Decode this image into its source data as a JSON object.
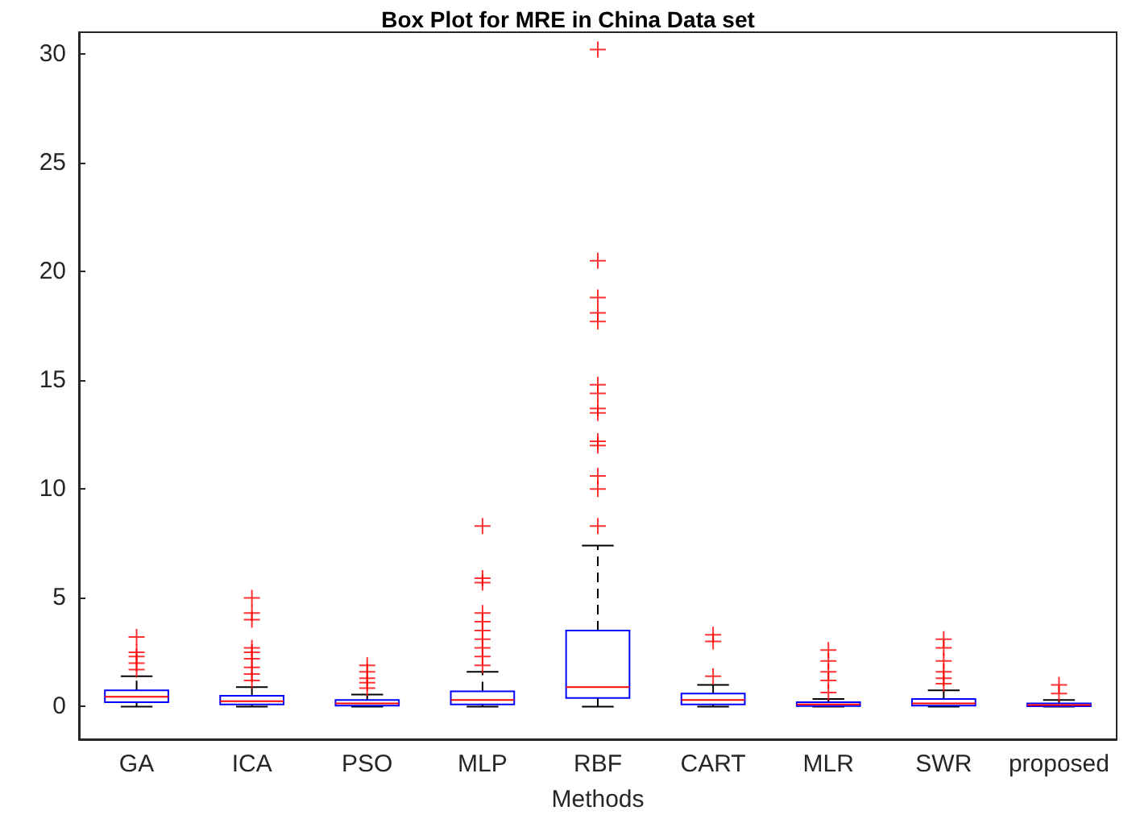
{
  "chart_data": {
    "type": "box",
    "title": "Box Plot for MRE in China Data set",
    "xlabel": "Methods",
    "categories": [
      "GA",
      "ICA",
      "PSO",
      "MLP",
      "RBF",
      "CART",
      "MLR",
      "SWR",
      "proposed"
    ],
    "ylim": [
      -1.5,
      31
    ],
    "yticks": [
      0,
      5,
      10,
      15,
      20,
      25,
      30
    ],
    "grid": false,
    "series": [
      {
        "color": "#0000ff",
        "boxes": [
          {
            "low": 0,
            "q1": 0.2,
            "median": 0.45,
            "q3": 0.75,
            "high": 1.4,
            "outliers": [
              1.7,
              2.0,
              2.3,
              2.5,
              3.2
            ]
          },
          {
            "low": 0,
            "q1": 0.1,
            "median": 0.25,
            "q3": 0.5,
            "high": 0.9,
            "outliers": [
              1.2,
              1.5,
              1.8,
              2.2,
              2.5,
              2.7,
              4.0,
              4.3,
              5.0
            ]
          },
          {
            "low": 0,
            "q1": 0.05,
            "median": 0.15,
            "q3": 0.3,
            "high": 0.55,
            "outliers": [
              0.85,
              1.1,
              1.3,
              1.6,
              1.9
            ]
          },
          {
            "low": 0,
            "q1": 0.1,
            "median": 0.3,
            "q3": 0.7,
            "high": 1.6,
            "outliers": [
              1.9,
              2.3,
              2.7,
              3.1,
              3.5,
              3.9,
              4.3,
              5.7,
              5.9,
              8.3
            ]
          },
          {
            "low": 0,
            "q1": 0.4,
            "median": 0.9,
            "q3": 3.5,
            "high": 7.4,
            "outliers": [
              8.3,
              10.0,
              10.6,
              12.0,
              12.2,
              13.5,
              13.7,
              14.4,
              14.8,
              17.7,
              18.1,
              18.8,
              20.5,
              30.2
            ]
          },
          {
            "low": 0,
            "q1": 0.1,
            "median": 0.3,
            "q3": 0.6,
            "high": 1.0,
            "outliers": [
              1.4,
              3.0,
              3.3
            ]
          },
          {
            "low": 0,
            "q1": 0.03,
            "median": 0.1,
            "q3": 0.2,
            "high": 0.35,
            "outliers": [
              0.65,
              1.2,
              1.6,
              2.1,
              2.6
            ]
          },
          {
            "low": 0,
            "q1": 0.05,
            "median": 0.15,
            "q3": 0.35,
            "high": 0.75,
            "outliers": [
              1.05,
              1.3,
              1.6,
              2.1,
              2.7,
              3.1
            ]
          },
          {
            "low": 0,
            "q1": 0.02,
            "median": 0.07,
            "q3": 0.15,
            "high": 0.3,
            "outliers": [
              0.6,
              1.0
            ]
          }
        ]
      }
    ]
  }
}
